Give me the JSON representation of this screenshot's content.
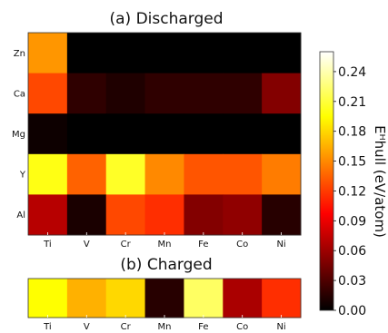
{
  "chart_data": [
    {
      "type": "heatmap",
      "title": "(a) Discharged",
      "x_categories": [
        "Ti",
        "V",
        "Cr",
        "Mn",
        "Fe",
        "Co",
        "Ni"
      ],
      "y_categories": [
        "Zn",
        "Ca",
        "Mg",
        "Y",
        "Al"
      ],
      "values": [
        [
          0.155,
          0.0,
          0.0,
          0.0,
          0.0,
          0.0,
          0.0
        ],
        [
          0.125,
          0.018,
          0.012,
          0.018,
          0.018,
          0.018,
          0.05
        ],
        [
          0.005,
          0.0,
          0.0,
          0.0,
          0.0,
          0.0,
          0.0
        ],
        [
          0.2,
          0.135,
          0.205,
          0.15,
          0.13,
          0.13,
          0.145
        ],
        [
          0.07,
          0.01,
          0.125,
          0.115,
          0.05,
          0.055,
          0.015
        ]
      ]
    },
    {
      "type": "heatmap",
      "title": "(b) Charged",
      "x_categories": [
        "Ti",
        "V",
        "Cr",
        "Mn",
        "Fe",
        "Co",
        "Ni"
      ],
      "values": [
        [
          0.195,
          0.165,
          0.18,
          0.015,
          0.22,
          0.065,
          0.115
        ]
      ]
    }
  ],
  "colorbar": {
    "label": "Eᴴhull (eV/atom)",
    "min": 0.0,
    "max": 0.26,
    "ticks": [
      "0.00",
      "0.03",
      "0.06",
      "0.09",
      "0.12",
      "0.15",
      "0.18",
      "0.21",
      "0.24"
    ],
    "colormap": "hot"
  }
}
